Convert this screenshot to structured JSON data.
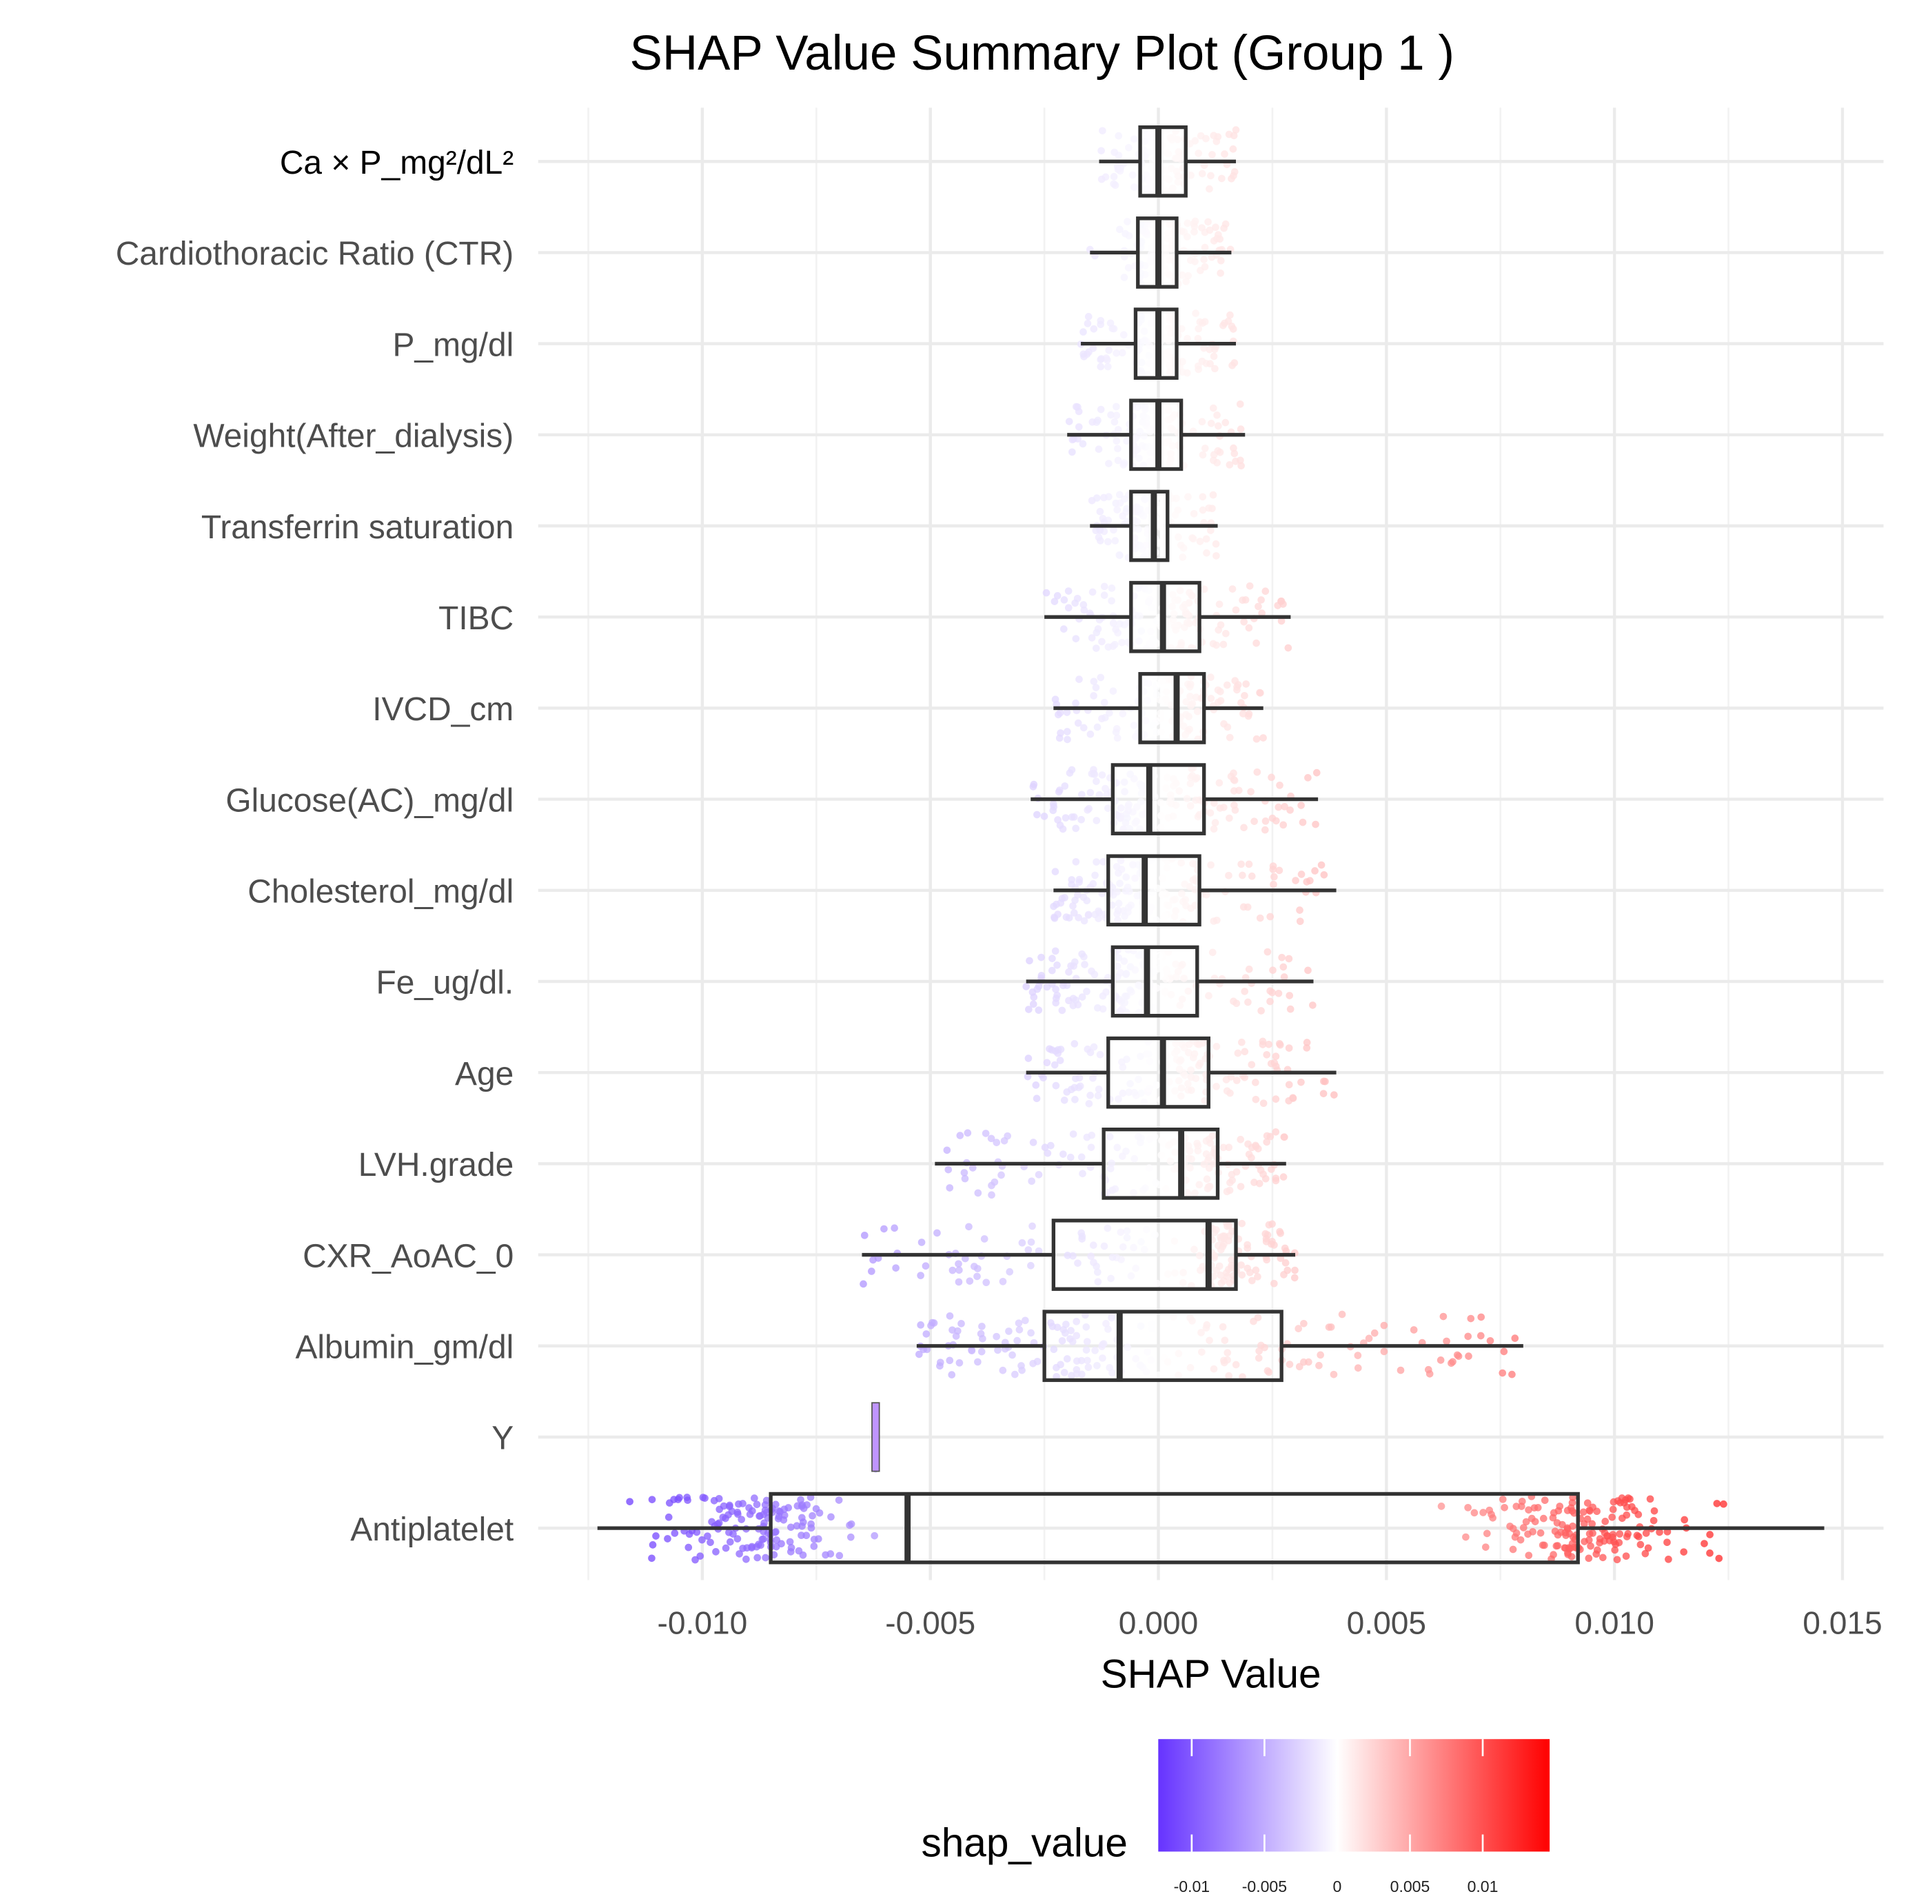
{
  "chart_data": {
    "type": "box+jitter",
    "title": "SHAP Value Summary Plot (Group 1 )",
    "xlabel": "SHAP Value",
    "ylabel": "",
    "xlim": [
      -0.0136,
      0.0159
    ],
    "xticks": [
      -0.01,
      -0.005,
      0.0,
      0.005,
      0.01,
      0.015
    ],
    "xtick_labels": [
      "-0.010",
      "-0.005",
      "0.000",
      "0.005",
      "0.010",
      "0.015"
    ],
    "grid": true,
    "legend": {
      "title": "shap_value",
      "placement": "bottom",
      "type": "colorbar",
      "range": [
        -0.0123,
        0.0146
      ],
      "ticks": [
        -0.01,
        -0.005,
        0,
        0.005,
        0.01
      ],
      "tick_labels": [
        "-0.01",
        "-0.005",
        "0",
        "0.005",
        "0.01"
      ],
      "low_color": "#6633FF",
      "mid_color": "#FFFFFF",
      "high_color": "#FF0000"
    },
    "features": [
      {
        "name": "Ca × P_mg²/dL²",
        "whisker_low": -0.0013,
        "q1": -0.0004,
        "median": 0.0,
        "q3": 0.0006,
        "whisker_high": 0.0017,
        "n": 110
      },
      {
        "name": "Cardiothoracic Ratio (CTR)",
        "whisker_low": -0.0015,
        "q1": -0.00045,
        "median": 0.0,
        "q3": 0.0004,
        "whisker_high": 0.0016,
        "n": 120
      },
      {
        "name": "P_mg/dl",
        "whisker_low": -0.0017,
        "q1": -0.0005,
        "median": 0.0,
        "q3": 0.0004,
        "whisker_high": 0.0017,
        "n": 130
      },
      {
        "name": "Weight(After_dialysis)",
        "whisker_low": -0.002,
        "q1": -0.0006,
        "median": 0.0,
        "q3": 0.0005,
        "whisker_high": 0.0019,
        "n": 130
      },
      {
        "name": "Transferrin saturation",
        "whisker_low": -0.0015,
        "q1": -0.0006,
        "median": -0.0001,
        "q3": 0.0002,
        "whisker_high": 0.0013,
        "n": 130
      },
      {
        "name": "TIBC",
        "whisker_low": -0.0025,
        "q1": -0.0006,
        "median": 0.0001,
        "q3": 0.0009,
        "whisker_high": 0.0029,
        "n": 140
      },
      {
        "name": "IVCD_cm",
        "whisker_low": -0.0023,
        "q1": -0.0004,
        "median": 0.0004,
        "q3": 0.001,
        "whisker_high": 0.0023,
        "n": 140
      },
      {
        "name": "Glucose(AC)_mg/dl",
        "whisker_low": -0.0028,
        "q1": -0.001,
        "median": -0.0002,
        "q3": 0.001,
        "whisker_high": 0.0035,
        "n": 150
      },
      {
        "name": "Cholesterol_mg/dl",
        "whisker_low": -0.0023,
        "q1": -0.0011,
        "median": -0.0003,
        "q3": 0.0009,
        "whisker_high": 0.0039,
        "n": 150
      },
      {
        "name": "Fe_ug/dl.",
        "whisker_low": -0.0029,
        "q1": -0.001,
        "median": -0.00025,
        "q3": 0.00085,
        "whisker_high": 0.0034,
        "n": 150
      },
      {
        "name": "Age",
        "whisker_low": -0.0029,
        "q1": -0.0011,
        "median": 0.0001,
        "q3": 0.0011,
        "whisker_high": 0.0039,
        "n": 150
      },
      {
        "name": "LVH.grade",
        "whisker_low": -0.0049,
        "q1": -0.0012,
        "median": 0.0005,
        "q3": 0.0013,
        "whisker_high": 0.0028,
        "n": 150
      },
      {
        "name": "CXR_AoAC_0",
        "whisker_low": -0.0065,
        "q1": -0.0023,
        "median": 0.0011,
        "q3": 0.0017,
        "whisker_high": 0.003,
        "n": 160
      },
      {
        "name": "Albumin_gm/dl",
        "whisker_low": -0.0053,
        "q1": -0.0025,
        "median": -0.00085,
        "q3": 0.0027,
        "whisker_high": 0.008,
        "n": 180
      },
      {
        "name": "Y",
        "whisker_low": -0.0062,
        "q1": -0.0062,
        "median": -0.0062,
        "q3": -0.0062,
        "whisker_high": -0.0062,
        "n": 60
      },
      {
        "name": "Antiplatelet",
        "whisker_low": -0.0123,
        "q1": -0.0085,
        "median": -0.0055,
        "q3": 0.0092,
        "whisker_high": 0.0146,
        "n": 300,
        "clusters": [
          {
            "center": -0.0088,
            "spread": 0.0026,
            "share": 0.5
          },
          {
            "center": 0.0093,
            "spread": 0.0028,
            "share": 0.5
          }
        ]
      }
    ]
  }
}
